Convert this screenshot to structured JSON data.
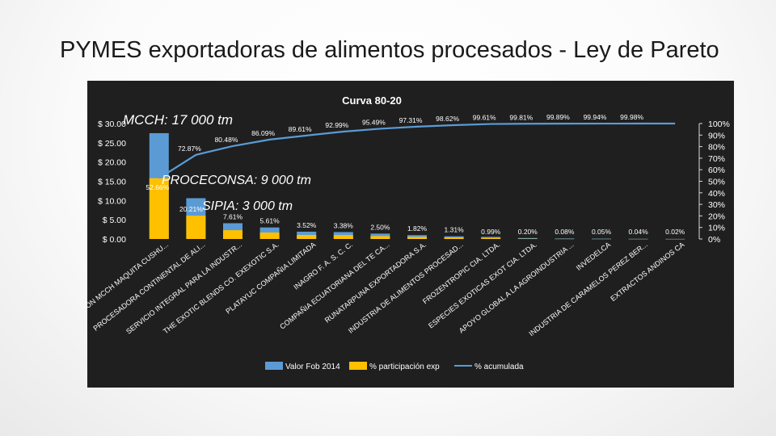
{
  "slide": {
    "title": "PYMES exportadoras de alimentos procesados - Ley de Pareto"
  },
  "annotations": [
    {
      "text": "MCCH: 17 000 tm",
      "anchor": 0
    },
    {
      "text": "PROCECONSA: 9 000 tm",
      "anchor": 1
    },
    {
      "text": "SIPIA: 3 000 tm",
      "anchor": 1
    }
  ],
  "chart_data": {
    "type": "bar",
    "title": "Curva 80-20",
    "categories": [
      "FUNDACION MCCH MAQUITA CUSHU...",
      "PROCESADORA CONTINENTAL DE ALI...",
      "SERVICIO INTEGRAL PARA LA INDUSTR...",
      "THE EXOTIC BLENDS CO. EXEXOTIC S.A.",
      "PLATAYUC COMPAÑIA LIMITADA",
      "INAGRO F. A. S. C. C.",
      "COMPAÑIA ECUATORIANA DEL TE CA...",
      "RUNATARPUNA EXPORTADORA S.A.",
      "INDUSTRIA DE ALIMENTOS PROCESAD...",
      "FROZENTROPIC CIA. LTDA.",
      "ESPECIES EXOTICAS EXOT CIA. LTDA.",
      "APOYO GLOBAL A LA AGROINDUSTRIA ...",
      "INVEDELCA",
      "INDUSTRIA DE CARAMELOS PEREZ BER...",
      "EXTRACTOS ANDINOS CA"
    ],
    "series": [
      {
        "name": "Valor Fob 2014",
        "color": "#5b9bd5",
        "values": [
          27.5,
          10.6,
          4.1,
          3.0,
          1.9,
          1.8,
          1.4,
          1.0,
          0.7,
          0.55,
          0.25,
          0.13,
          0.09,
          0.05,
          0.03
        ]
      },
      {
        "name": "% participación exp",
        "color": "#ffc000",
        "values": [
          52.66,
          20.21,
          7.61,
          5.61,
          3.52,
          3.38,
          2.5,
          1.82,
          1.31,
          0.99,
          0.2,
          0.08,
          0.05,
          0.04,
          0.02
        ]
      },
      {
        "name": "% acumulada",
        "color": "#5b9bd5",
        "values": [
          52.66,
          72.87,
          80.48,
          86.09,
          89.61,
          92.99,
          95.49,
          97.31,
          98.62,
          99.61,
          99.81,
          99.89,
          99.94,
          99.98,
          100
        ]
      }
    ],
    "share_labels": [
      "52.66%",
      "20.21%",
      "7.61%",
      "5.61%",
      "3.52%",
      "3.38%",
      "2.50%",
      "1.82%",
      "1.31%",
      "0.99%",
      "0.20%",
      "0.08%",
      "0.05%",
      "0.04%",
      "0.02%"
    ],
    "cumulative_labels": [
      "",
      "72.87%",
      "80.48%",
      "86.09%",
      "89.61%",
      "92.99%",
      "95.49%",
      "97.31%",
      "98.62%",
      "99.61%",
      "99.81%",
      "99.89%",
      "99.94%",
      "99.98%",
      ""
    ],
    "y_left": {
      "ticks": [
        0,
        5,
        10,
        15,
        20,
        25,
        30
      ],
      "tick_labels": [
        "$ 0.00",
        "$ 5.00",
        "$ 10.00",
        "$ 15.00",
        "$ 20.00",
        "$ 25.00",
        "$ 30.00"
      ],
      "ylim": [
        0,
        30
      ]
    },
    "y_right": {
      "ticks": [
        0,
        10,
        20,
        30,
        40,
        50,
        60,
        70,
        80,
        90,
        100
      ],
      "tick_labels": [
        "0%",
        "10%",
        "20%",
        "30%",
        "40%",
        "50%",
        "60%",
        "70%",
        "80%",
        "90%",
        "100%"
      ],
      "ylim": [
        0,
        100
      ]
    },
    "legend": {
      "position": "bottom",
      "entries": [
        "Valor Fob 2014",
        "% participación exp",
        "% acumulada"
      ]
    },
    "grid": false
  }
}
